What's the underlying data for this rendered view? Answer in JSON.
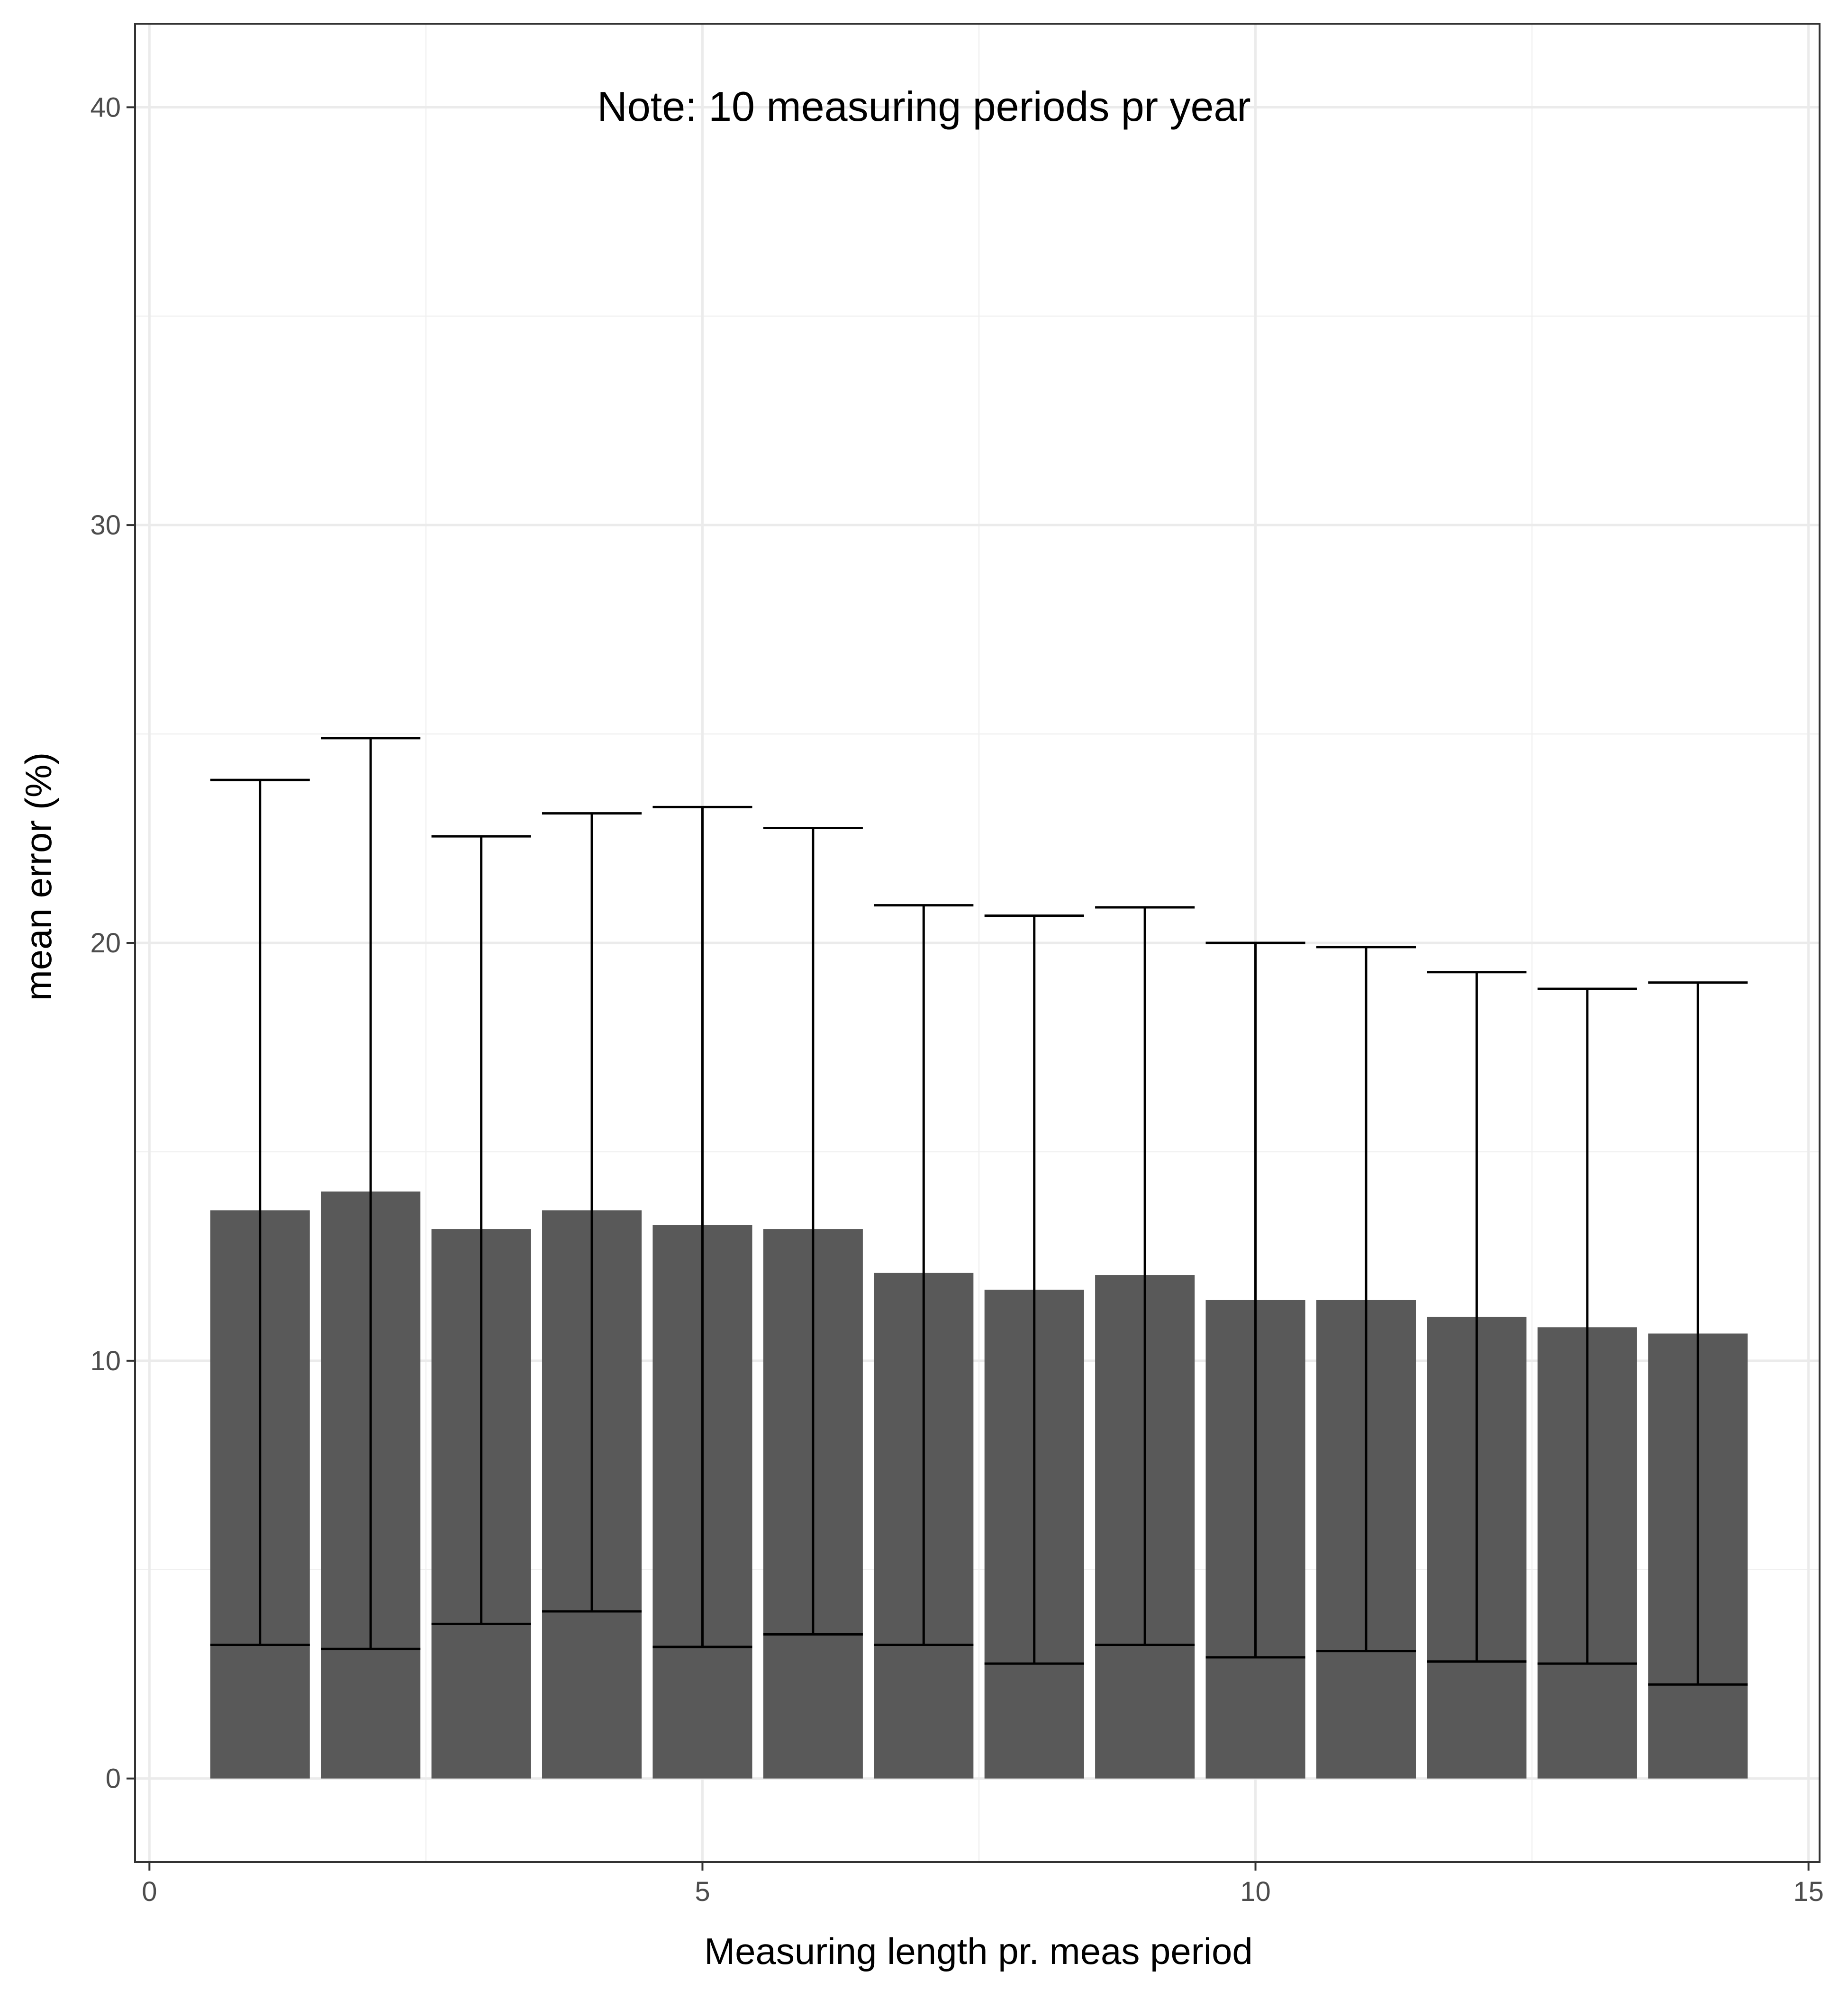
{
  "chart_data": {
    "type": "bar",
    "xlabel": "Measuring length pr. meas period",
    "ylabel": "mean error (%)",
    "annotation": "Note: 10 measuring periods pr year",
    "xlim": [
      -0.13,
      15.1
    ],
    "ylim": [
      -2,
      42
    ],
    "x_ticks": [
      0,
      5,
      10,
      15
    ],
    "y_ticks": [
      0,
      10,
      20,
      30,
      40
    ],
    "grid": true,
    "bar_color": "#595959",
    "x": [
      1,
      2,
      3,
      4,
      5,
      6,
      7,
      8,
      9,
      10,
      11,
      12,
      13,
      14
    ],
    "values": [
      13.6,
      14.05,
      13.15,
      13.6,
      13.25,
      13.15,
      12.1,
      11.7,
      12.05,
      11.45,
      11.45,
      11.05,
      10.8,
      10.65
    ],
    "error_low": [
      3.2,
      3.1,
      3.7,
      4.0,
      3.15,
      3.45,
      3.2,
      2.75,
      3.2,
      2.9,
      3.05,
      2.8,
      2.75,
      2.25
    ],
    "error_high": [
      23.9,
      24.9,
      22.55,
      23.1,
      23.25,
      22.75,
      20.9,
      20.65,
      20.85,
      20.0,
      19.9,
      19.3,
      18.9,
      19.05
    ]
  }
}
